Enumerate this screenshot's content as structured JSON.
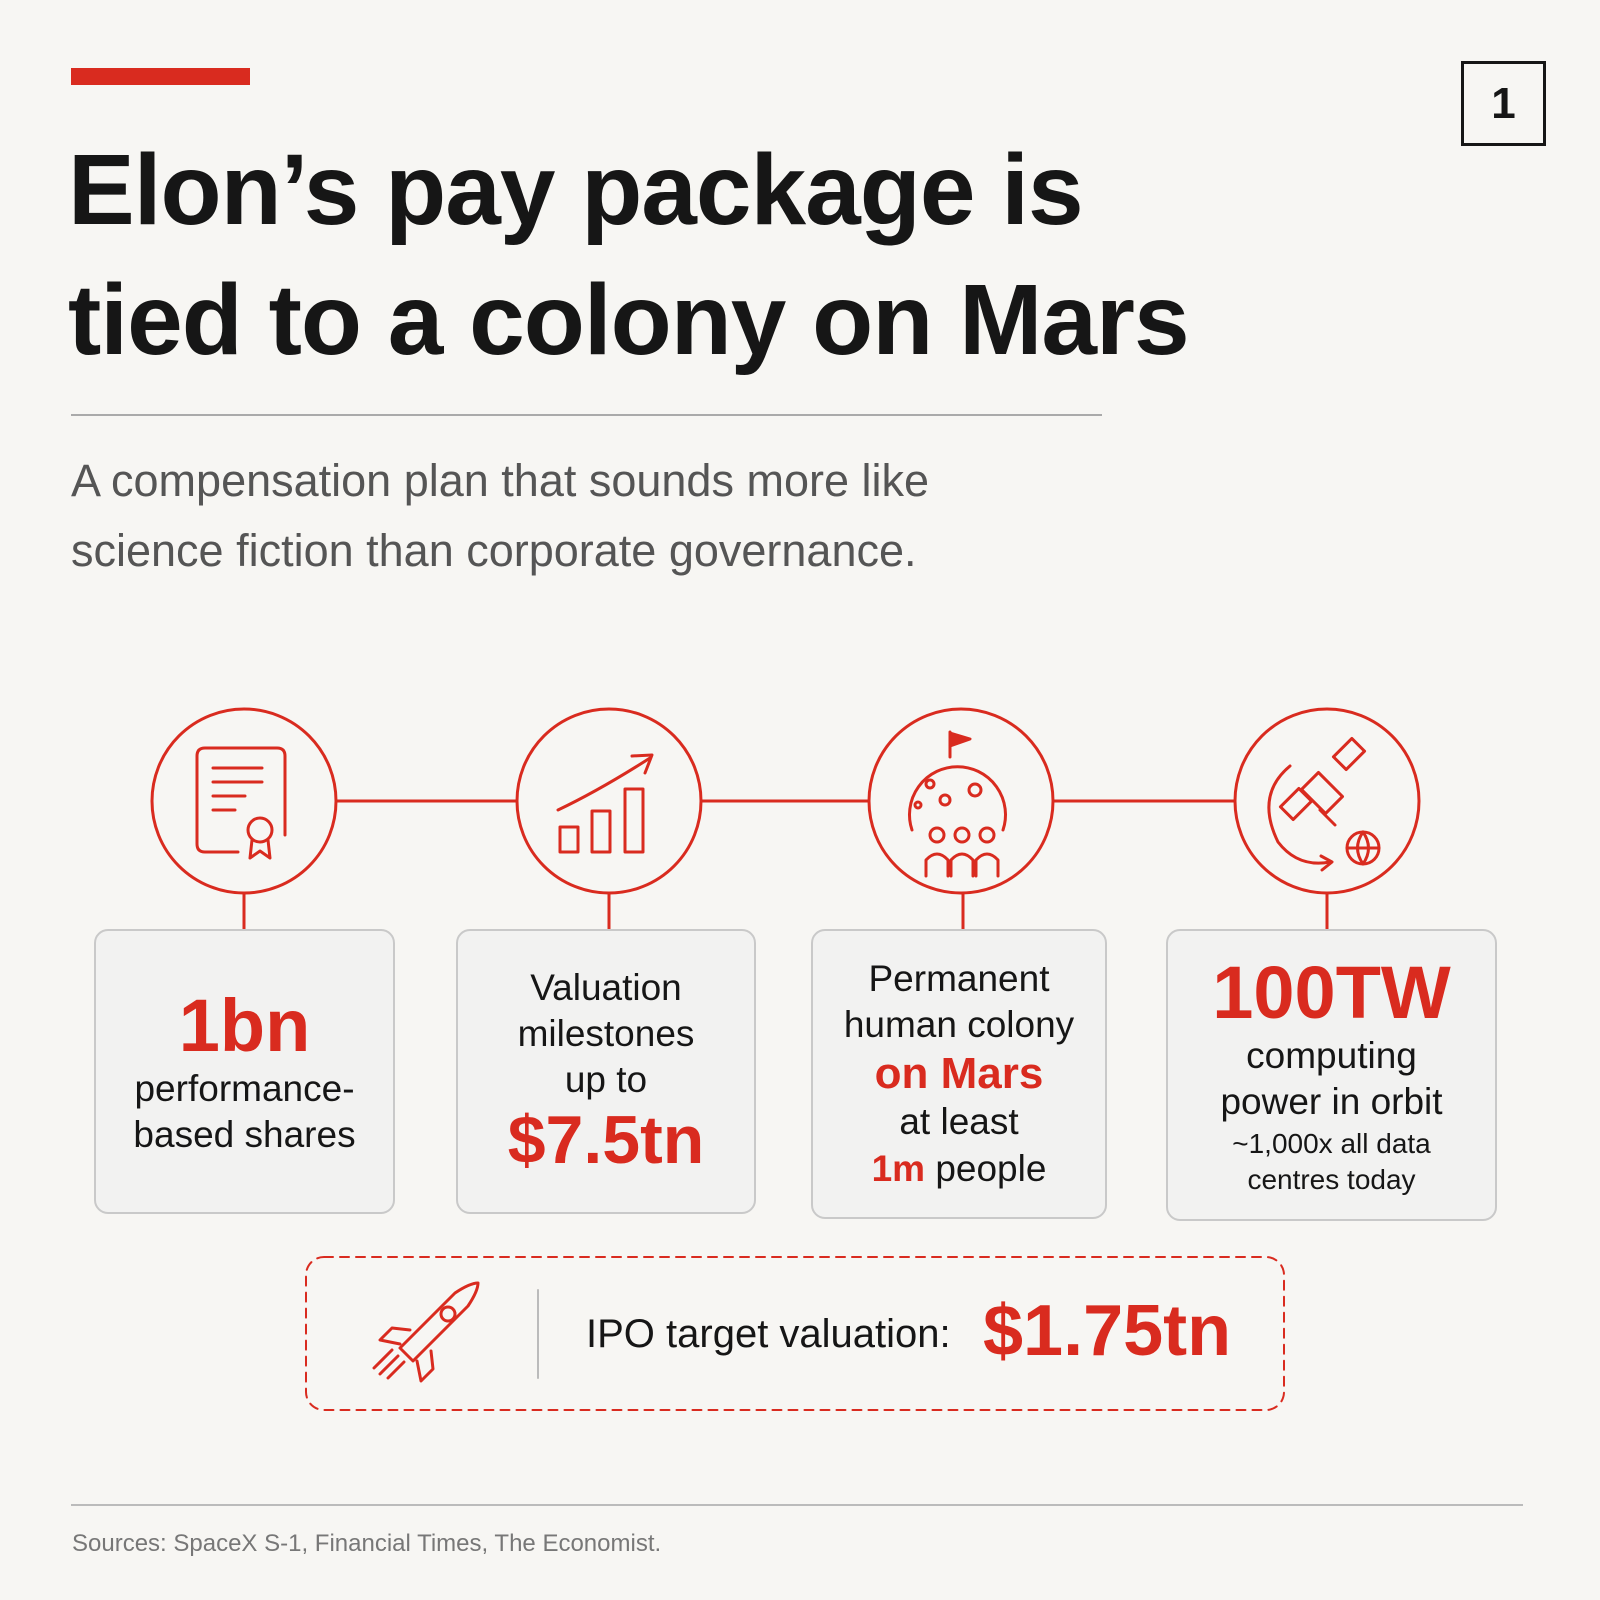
{
  "page_number": "1",
  "header": {
    "title_lines": [
      "Elon’s pay package is",
      "tied to a colony on Mars"
    ],
    "subtitle_lines": [
      "A compensation plan that sounds more like",
      "science fiction than corporate governance."
    ]
  },
  "cards": [
    {
      "highlight": "1bn",
      "lines": [
        "performance-",
        "based shares"
      ]
    },
    {
      "lines": [
        "Valuation",
        "milestones",
        "up to"
      ],
      "highlight": "$7.5tn"
    },
    {
      "lines": [
        "Permanent",
        "human colony"
      ],
      "highlight": "on Mars",
      "lines_after": [
        "at least"
      ],
      "last_highlight": "1m",
      "last_text": "people"
    },
    {
      "highlight": "100TW",
      "lines": [
        "computing",
        "power in orbit"
      ],
      "small_lines": [
        "~1,000x all data",
        "centres today"
      ]
    }
  ],
  "ipo": {
    "label": "IPO target valuation:",
    "value": "$1.75tn"
  },
  "sources": "Sources: SpaceX S-1, Financial Times, The Economist."
}
